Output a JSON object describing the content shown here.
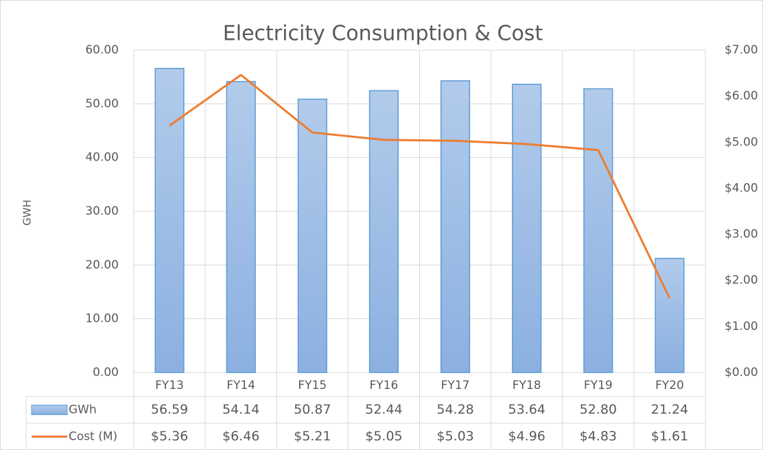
{
  "chart_data": {
    "type": "bar",
    "title": "Electricity Consumption & Cost",
    "ylabel": "GWH",
    "categories": [
      "FY13",
      "FY14",
      "FY15",
      "FY16",
      "FY17",
      "FY18",
      "FY19",
      "FY20"
    ],
    "series": [
      {
        "name": "GWh",
        "type": "bar",
        "color": "#9dbde6",
        "values": [
          56.59,
          54.14,
          50.87,
          52.44,
          54.28,
          53.64,
          52.8,
          21.24
        ],
        "value_labels": [
          "56.59",
          "54.14",
          "50.87",
          "52.44",
          "54.28",
          "53.64",
          "52.80",
          "21.24"
        ]
      },
      {
        "name": "Cost (M)",
        "type": "line",
        "axis": "y2",
        "color": "#ed7d31",
        "values": [
          5.36,
          6.46,
          5.21,
          5.05,
          5.03,
          4.96,
          4.83,
          1.61
        ],
        "value_labels": [
          "$5.36",
          "$6.46",
          "$5.21",
          "$5.05",
          "$5.03",
          "$4.96",
          "$4.83",
          "$1.61"
        ]
      }
    ],
    "ylim": [
      0,
      60
    ],
    "yticks": [
      {
        "value": 0,
        "label": "0.00"
      },
      {
        "value": 10,
        "label": "10.00"
      },
      {
        "value": 20,
        "label": "20.00"
      },
      {
        "value": 30,
        "label": "30.00"
      },
      {
        "value": 40,
        "label": "40.00"
      },
      {
        "value": 50,
        "label": "50.00"
      },
      {
        "value": 60,
        "label": "60.00"
      }
    ],
    "y2lim": [
      0,
      7
    ],
    "y2ticks": [
      {
        "value": 0,
        "label": "$0.00"
      },
      {
        "value": 1,
        "label": "$1.00"
      },
      {
        "value": 2,
        "label": "$2.00"
      },
      {
        "value": 3,
        "label": "$3.00"
      },
      {
        "value": 4,
        "label": "$4.00"
      },
      {
        "value": 5,
        "label": "$5.00"
      },
      {
        "value": 6,
        "label": "$6.00"
      },
      {
        "value": 7,
        "label": "$7.00"
      }
    ],
    "grid": true
  }
}
